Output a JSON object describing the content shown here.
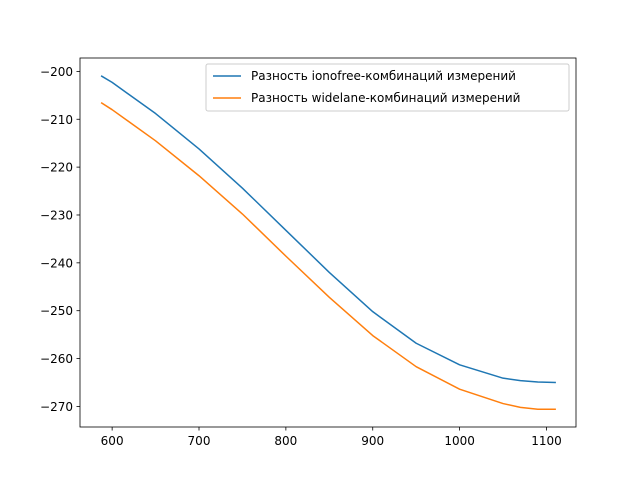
{
  "chart_data": {
    "type": "line",
    "title": "",
    "xlabel": "",
    "ylabel": "",
    "xlim": [
      563,
      1134
    ],
    "ylim": [
      -274.3,
      -197.2
    ],
    "grid": false,
    "legend_position": "top-right",
    "x_ticks": [
      600,
      700,
      800,
      900,
      1000,
      1100
    ],
    "x_tick_labels": [
      "600",
      "700",
      "800",
      "900",
      "1000",
      "1100"
    ],
    "y_ticks": [
      -200,
      -210,
      -220,
      -230,
      -240,
      -250,
      -260,
      -270
    ],
    "y_tick_labels": [
      "−200",
      "−210",
      "−220",
      "−230",
      "−240",
      "−250",
      "−260",
      "−270"
    ],
    "series": [
      {
        "name": "Разность ionofree-комбинаций измерений",
        "color": "#1f77b4",
        "x": [
          588,
          600,
          650,
          700,
          750,
          800,
          850,
          900,
          950,
          1000,
          1050,
          1070,
          1090,
          1110
        ],
        "y": [
          -201.0,
          -202.3,
          -208.8,
          -216.2,
          -224.4,
          -233.2,
          -242.0,
          -250.2,
          -256.8,
          -261.3,
          -264.1,
          -264.6,
          -264.9,
          -265.0
        ]
      },
      {
        "name": "Разность widelane-комбинаций измерений",
        "color": "#ff7f0e",
        "x": [
          588,
          600,
          650,
          700,
          750,
          800,
          850,
          900,
          950,
          1000,
          1050,
          1070,
          1090,
          1110
        ],
        "y": [
          -206.6,
          -208.0,
          -214.5,
          -221.8,
          -229.8,
          -238.6,
          -247.2,
          -255.2,
          -261.7,
          -266.4,
          -269.4,
          -270.2,
          -270.6,
          -270.6
        ]
      }
    ]
  }
}
